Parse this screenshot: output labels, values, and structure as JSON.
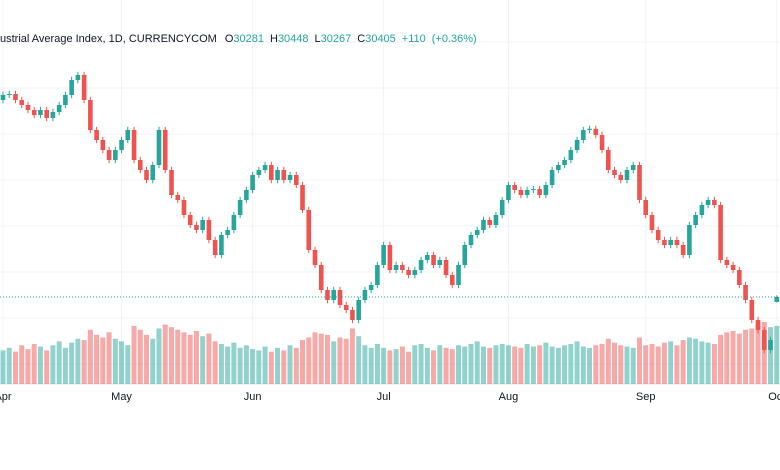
{
  "chart_data": {
    "type": "candlestick",
    "title": "ustrial Average Index, 1D, CURRENCYCOM",
    "ohlc_labels": [
      "O",
      "H",
      "L",
      "C"
    ],
    "change": {
      "value": 110,
      "label": "+110"
    },
    "change_pct": {
      "value": 0.36,
      "label": "(+0.36%)"
    },
    "up_color": "#26a69a",
    "down_color": "#ef5350",
    "grid": true,
    "categories": [
      "Apr",
      null,
      null,
      null,
      null,
      null,
      null,
      null,
      null,
      null,
      null,
      null,
      null,
      null,
      null,
      null,
      null,
      null,
      null,
      "May",
      null,
      null,
      null,
      null,
      null,
      null,
      null,
      null,
      null,
      null,
      null,
      null,
      null,
      null,
      null,
      null,
      null,
      null,
      null,
      null,
      "Jun",
      null,
      null,
      null,
      null,
      null,
      null,
      null,
      null,
      null,
      null,
      null,
      null,
      null,
      null,
      null,
      null,
      null,
      null,
      null,
      null,
      "Jul",
      null,
      null,
      null,
      null,
      null,
      null,
      null,
      null,
      null,
      null,
      null,
      null,
      null,
      null,
      null,
      null,
      null,
      null,
      null,
      "Aug",
      null,
      null,
      null,
      null,
      null,
      null,
      null,
      null,
      null,
      null,
      null,
      null,
      null,
      null,
      null,
      null,
      null,
      null,
      null,
      null,
      null,
      "Sep",
      null,
      null,
      null,
      null,
      null,
      null,
      null,
      null,
      null,
      null,
      null,
      null,
      null,
      null,
      null,
      null,
      null,
      null,
      null,
      null,
      "Oct"
    ],
    "open": [
      35330,
      35455,
      35480,
      35330,
      35205,
      35080,
      34955,
      35080,
      34880,
      35030,
      35205,
      35455,
      35830,
      35955,
      35330,
      34580,
      34330,
      34080,
      33830,
      34080,
      34330,
      34580,
      33830,
      33580,
      33330,
      33705,
      34580,
      33580,
      32955,
      32830,
      32455,
      32205,
      32080,
      32330,
      31830,
      31455,
      31955,
      32080,
      32455,
      32830,
      33080,
      33455,
      33580,
      33705,
      33330,
      33580,
      33330,
      33455,
      33205,
      32580,
      31580,
      31205,
      30580,
      30330,
      30580,
      30205,
      30080,
      29830,
      30330,
      30580,
      30705,
      31205,
      31705,
      31080,
      31205,
      31080,
      30955,
      31080,
      31330,
      31455,
      31205,
      31330,
      30955,
      30705,
      31205,
      31705,
      31955,
      32080,
      32330,
      32205,
      32455,
      32830,
      33205,
      33080,
      32955,
      33080,
      33105,
      32955,
      33205,
      33580,
      33705,
      33830,
      34080,
      34330,
      34580,
      34610,
      34455,
      34080,
      33580,
      33455,
      33330,
      33580,
      33705,
      32830,
      32455,
      32080,
      31830,
      31705,
      31830,
      31705,
      31455,
      32205,
      32455,
      32705,
      32830,
      32705,
      31330,
      31205,
      31080,
      30705,
      30330,
      29830,
      29580,
      29080,
      30281
    ],
    "high": [
      35535,
      35560,
      35560,
      35410,
      35285,
      35160,
      35160,
      35160,
      35110,
      35285,
      35535,
      35910,
      36035,
      36035,
      35410,
      34660,
      34410,
      34160,
      34160,
      34410,
      34660,
      34660,
      33910,
      33660,
      33785,
      34660,
      34660,
      33660,
      33035,
      32910,
      32535,
      32285,
      32410,
      32410,
      31910,
      32035,
      32160,
      32535,
      32910,
      33160,
      33535,
      33660,
      33785,
      33785,
      33660,
      33660,
      33535,
      33535,
      33285,
      32660,
      31660,
      31285,
      30660,
      30660,
      30660,
      30285,
      30160,
      30410,
      30660,
      30785,
      31285,
      31785,
      31785,
      31285,
      31285,
      31160,
      31160,
      31410,
      31535,
      31535,
      31410,
      31410,
      31035,
      31285,
      31785,
      32035,
      32160,
      32410,
      32410,
      32535,
      32910,
      33285,
      33285,
      33160,
      33160,
      33185,
      33185,
      33285,
      33660,
      33785,
      33910,
      34160,
      34410,
      34660,
      34690,
      34690,
      34535,
      34160,
      33660,
      33535,
      33660,
      33785,
      33785,
      32910,
      32535,
      32160,
      31910,
      31910,
      31910,
      31785,
      32285,
      32535,
      32785,
      32910,
      32910,
      32785,
      31410,
      31285,
      31160,
      30785,
      30410,
      29910,
      29660,
      29410,
      30448
    ],
    "low": [
      35250,
      35375,
      35250,
      35125,
      35000,
      34875,
      34875,
      34800,
      34800,
      34950,
      35125,
      35375,
      35750,
      35250,
      34500,
      34250,
      34000,
      33750,
      33750,
      34000,
      34250,
      33750,
      33500,
      33250,
      33250,
      33625,
      33500,
      32875,
      32750,
      32375,
      32125,
      32000,
      32000,
      31750,
      31375,
      31375,
      31875,
      32000,
      32375,
      32750,
      33000,
      33375,
      33500,
      33250,
      33250,
      33250,
      33250,
      33125,
      32500,
      31500,
      31125,
      30500,
      30250,
      30250,
      30125,
      30000,
      29750,
      29750,
      30250,
      30500,
      30625,
      31125,
      31000,
      31000,
      31000,
      30875,
      30875,
      31000,
      31250,
      31125,
      31125,
      30875,
      30625,
      30625,
      31125,
      31625,
      31875,
      32000,
      32125,
      32125,
      32375,
      32750,
      33000,
      32875,
      32875,
      33000,
      32875,
      32875,
      33125,
      33500,
      33625,
      33750,
      34000,
      34250,
      34500,
      34375,
      34000,
      33500,
      33375,
      33250,
      33250,
      33500,
      32750,
      32375,
      32000,
      31750,
      31625,
      31625,
      31625,
      31375,
      31375,
      32125,
      32375,
      32625,
      32625,
      31250,
      31125,
      31000,
      30625,
      30250,
      29750,
      29500,
      29000,
      29000,
      30267
    ],
    "close": [
      35455,
      35480,
      35330,
      35205,
      35080,
      34955,
      35080,
      34880,
      35030,
      35205,
      35455,
      35830,
      35955,
      35330,
      34580,
      34330,
      34080,
      33830,
      34080,
      34330,
      34580,
      33830,
      33580,
      33330,
      33705,
      34580,
      33580,
      32955,
      32830,
      32455,
      32205,
      32080,
      32330,
      31830,
      31455,
      31955,
      32080,
      32455,
      32830,
      33080,
      33455,
      33580,
      33705,
      33330,
      33580,
      33330,
      33455,
      33205,
      32580,
      31580,
      31205,
      30580,
      30330,
      30580,
      30205,
      30080,
      29830,
      30330,
      30580,
      30705,
      31205,
      31705,
      31080,
      31205,
      31080,
      30955,
      31080,
      31330,
      31455,
      31205,
      31330,
      30955,
      30705,
      31205,
      31705,
      31955,
      32080,
      32330,
      32205,
      32455,
      32830,
      33205,
      33080,
      32955,
      33080,
      33105,
      32955,
      33205,
      33580,
      33705,
      33830,
      34080,
      34330,
      34580,
      34610,
      34455,
      34080,
      33580,
      33455,
      33330,
      33580,
      33705,
      32830,
      32455,
      32080,
      31830,
      31705,
      31830,
      31705,
      31455,
      32205,
      32455,
      32705,
      32830,
      32705,
      31330,
      31205,
      31080,
      30705,
      30330,
      29830,
      29580,
      29080,
      29330,
      30405
    ],
    "volume": [
      260,
      280,
      250,
      300,
      270,
      310,
      290,
      260,
      300,
      330,
      280,
      320,
      350,
      340,
      420,
      380,
      360,
      400,
      350,
      330,
      300,
      450,
      420,
      380,
      350,
      430,
      460,
      440,
      420,
      400,
      380,
      410,
      370,
      390,
      330,
      310,
      290,
      320,
      280,
      300,
      270,
      260,
      290,
      250,
      280,
      260,
      300,
      280,
      340,
      360,
      400,
      390,
      380,
      330,
      360,
      350,
      430,
      370,
      300,
      280,
      310,
      280,
      260,
      270,
      290,
      250,
      300,
      310,
      280,
      260,
      300,
      280,
      270,
      300,
      290,
      310,
      330,
      290,
      280,
      300,
      310,
      300,
      290,
      280,
      310,
      290,
      300,
      320,
      290,
      280,
      300,
      310,
      330,
      290,
      280,
      300,
      310,
      350,
      320,
      300,
      290,
      280,
      360,
      300,
      310,
      290,
      320,
      330,
      300,
      340,
      360,
      350,
      330,
      320,
      310,
      380,
      400,
      410,
      390,
      420,
      430,
      460,
      480,
      440,
      450
    ]
  }
}
